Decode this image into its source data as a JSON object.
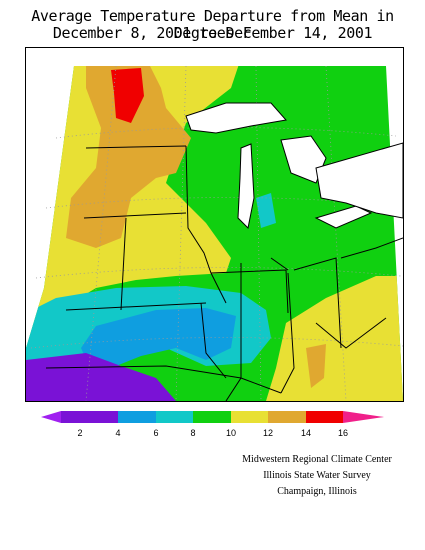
{
  "title": {
    "line1": "Average Temperature Departure from Mean in Degrees F",
    "line2": "December 8, 2001 to December 14, 2001"
  },
  "legend": {
    "tick_labels": [
      "2",
      "4",
      "6",
      "8",
      "10",
      "12",
      "14",
      "16"
    ],
    "colors": [
      "#a020f0",
      "#7a12d6",
      "#0f9ee0",
      "#12c8c8",
      "#10d010",
      "#e8e034",
      "#e0a830",
      "#f00000",
      "#f0208a"
    ]
  },
  "map": {
    "region": "Midwestern United States",
    "background": "#ffffff",
    "lake_color": "#ffffff",
    "boundary_color": "#000000",
    "grid_color": "#9a9a9a"
  },
  "credits": {
    "line1": "Midwestern Regional Climate Center",
    "line2": "Illinois State Water Survey",
    "line3": "Champaign, Illinois"
  }
}
